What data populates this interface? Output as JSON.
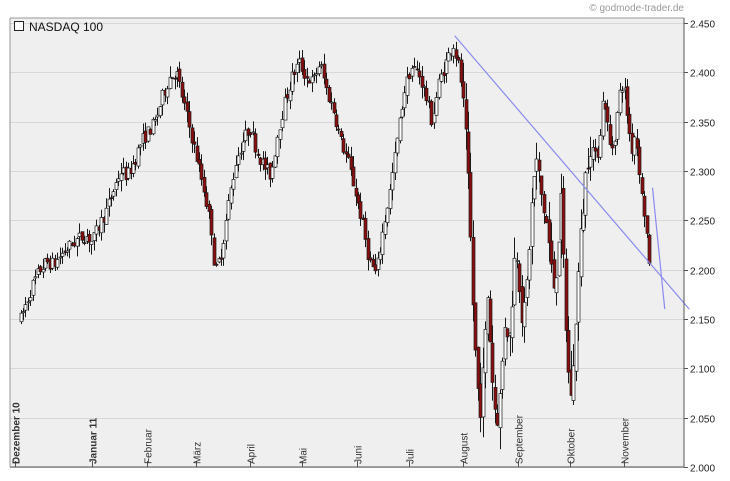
{
  "watermark": "© godmode-trader.de",
  "colors": {
    "plot_bg": "#efefef",
    "grid": "#d8d8d8",
    "up_fill": "#ffffff",
    "down_fill": "#8b0d0d",
    "candle_stroke": "#1a1a1a",
    "trendline": "#8a8af0"
  },
  "chart_data": {
    "type": "candlestick",
    "legend": [
      "NASDAQ 100"
    ],
    "y_ticks": [
      "2.450",
      "2.400",
      "2.350",
      "2.300",
      "2.250",
      "2.200",
      "2.150",
      "2.100",
      "2.050",
      "2.000"
    ],
    "y_tick_values": [
      2450,
      2400,
      2350,
      2300,
      2250,
      2200,
      2150,
      2100,
      2050,
      2000
    ],
    "ylim": [
      2000,
      2455
    ],
    "x_labels": [
      {
        "label": "Dezember 10",
        "day": 0,
        "bold": true
      },
      {
        "label": "Januar 11",
        "day": 44,
        "bold": true
      },
      {
        "label": "Februar",
        "day": 75,
        "bold": false
      },
      {
        "label": "März",
        "day": 103,
        "bold": false
      },
      {
        "label": "April",
        "day": 134,
        "bold": false
      },
      {
        "label": "Mai",
        "day": 164,
        "bold": false
      },
      {
        "label": "Juni",
        "day": 195,
        "bold": false
      },
      {
        "label": "Juli",
        "day": 225,
        "bold": false
      },
      {
        "label": "August",
        "day": 256,
        "bold": false
      },
      {
        "label": "September",
        "day": 287,
        "bold": false
      },
      {
        "label": "Oktober",
        "day": 317,
        "bold": false
      },
      {
        "label": "November",
        "day": 348,
        "bold": false
      }
    ],
    "xlim": [
      -3,
      382
    ],
    "close_series": [
      [
        3,
        2150
      ],
      [
        6,
        2165
      ],
      [
        10,
        2185
      ],
      [
        14,
        2200
      ],
      [
        18,
        2208
      ],
      [
        22,
        2205
      ],
      [
        26,
        2215
      ],
      [
        30,
        2222
      ],
      [
        35,
        2230
      ],
      [
        40,
        2235
      ],
      [
        44,
        2228
      ],
      [
        48,
        2245
      ],
      [
        52,
        2260
      ],
      [
        56,
        2280
      ],
      [
        60,
        2300
      ],
      [
        64,
        2295
      ],
      [
        68,
        2310
      ],
      [
        72,
        2330
      ],
      [
        76,
        2340
      ],
      [
        80,
        2350
      ],
      [
        84,
        2375
      ],
      [
        88,
        2395
      ],
      [
        92,
        2400
      ],
      [
        96,
        2370
      ],
      [
        100,
        2340
      ],
      [
        104,
        2310
      ],
      [
        108,
        2280
      ],
      [
        112,
        2240
      ],
      [
        114,
        2195
      ],
      [
        118,
        2220
      ],
      [
        122,
        2270
      ],
      [
        126,
        2310
      ],
      [
        130,
        2330
      ],
      [
        134,
        2345
      ],
      [
        138,
        2320
      ],
      [
        142,
        2305
      ],
      [
        146,
        2295
      ],
      [
        150,
        2340
      ],
      [
        154,
        2370
      ],
      [
        158,
        2395
      ],
      [
        162,
        2410
      ],
      [
        166,
        2395
      ],
      [
        170,
        2390
      ],
      [
        174,
        2410
      ],
      [
        178,
        2380
      ],
      [
        182,
        2360
      ],
      [
        186,
        2330
      ],
      [
        190,
        2310
      ],
      [
        194,
        2280
      ],
      [
        198,
        2250
      ],
      [
        202,
        2210
      ],
      [
        206,
        2195
      ],
      [
        210,
        2240
      ],
      [
        214,
        2280
      ],
      [
        218,
        2330
      ],
      [
        222,
        2380
      ],
      [
        226,
        2405
      ],
      [
        230,
        2400
      ],
      [
        234,
        2380
      ],
      [
        238,
        2350
      ],
      [
        242,
        2390
      ],
      [
        246,
        2410
      ],
      [
        250,
        2430
      ],
      [
        254,
        2400
      ],
      [
        256,
        2360
      ],
      [
        258,
        2310
      ],
      [
        260,
        2230
      ],
      [
        262,
        2140
      ],
      [
        264,
        2080
      ],
      [
        266,
        2060
      ],
      [
        268,
        2120
      ],
      [
        270,
        2180
      ],
      [
        272,
        2100
      ],
      [
        274,
        2060
      ],
      [
        276,
        2050
      ],
      [
        278,
        2100
      ],
      [
        280,
        2160
      ],
      [
        282,
        2120
      ],
      [
        284,
        2180
      ],
      [
        286,
        2230
      ],
      [
        288,
        2190
      ],
      [
        290,
        2140
      ],
      [
        292,
        2180
      ],
      [
        294,
        2240
      ],
      [
        296,
        2290
      ],
      [
        298,
        2310
      ],
      [
        300,
        2280
      ],
      [
        302,
        2260
      ],
      [
        304,
        2240
      ],
      [
        306,
        2200
      ],
      [
        308,
        2180
      ],
      [
        310,
        2230
      ],
      [
        312,
        2270
      ],
      [
        314,
        2160
      ],
      [
        316,
        2090
      ],
      [
        318,
        2070
      ],
      [
        320,
        2150
      ],
      [
        322,
        2210
      ],
      [
        324,
        2260
      ],
      [
        326,
        2300
      ],
      [
        328,
        2330
      ],
      [
        330,
        2320
      ],
      [
        332,
        2310
      ],
      [
        334,
        2340
      ],
      [
        336,
        2380
      ],
      [
        338,
        2350
      ],
      [
        340,
        2320
      ],
      [
        342,
        2330
      ],
      [
        344,
        2360
      ],
      [
        346,
        2390
      ],
      [
        348,
        2380
      ],
      [
        350,
        2350
      ],
      [
        352,
        2320
      ],
      [
        354,
        2340
      ],
      [
        356,
        2310
      ],
      [
        358,
        2270
      ],
      [
        360,
        2250
      ],
      [
        362,
        2200
      ]
    ],
    "trendlines": [
      {
        "from": [
          251,
          2437
        ],
        "to": [
          385,
          2160
        ]
      },
      {
        "from": [
          364,
          2283
        ],
        "to": [
          371,
          2160
        ]
      }
    ]
  }
}
